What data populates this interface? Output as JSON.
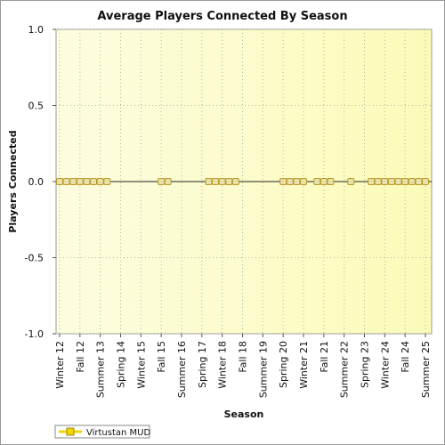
{
  "colors": {
    "plot_bg_left": "#fdfde0",
    "plot_bg_right": "#fbfbb8",
    "marker_fill": "#e8e0a8",
    "marker_stroke": "#b89a28",
    "legend_fill": "#f2d600",
    "legend_stroke": "#9a8a20",
    "zero_line": "#222222",
    "grid": "#b8b8a0"
  },
  "chart_data": {
    "type": "line",
    "title": "Average Players Connected By Season",
    "xlabel": "Season",
    "ylabel": "Players Connected",
    "ylim": [
      -1.0,
      1.0
    ],
    "yticks": [
      1.0,
      0.5,
      0.0,
      -0.5,
      -1.0
    ],
    "ytick_labels": [
      "1.0",
      "0.5",
      "0.0",
      "-0.5",
      "-1.0"
    ],
    "grid": true,
    "legend_position": "bottom-left",
    "categories": [
      "Winter 12",
      "Spring 12",
      "Summer 12",
      "Fall 12",
      "Winter 13",
      "Spring 13",
      "Summer 13",
      "Fall 13",
      "Winter 14",
      "Spring 14",
      "Summer 14",
      "Fall 14",
      "Winter 15",
      "Spring 15",
      "Summer 15",
      "Fall 15",
      "Winter 16",
      "Spring 16",
      "Summer 16",
      "Fall 16",
      "Winter 17",
      "Spring 17",
      "Summer 17",
      "Fall 17",
      "Winter 18",
      "Spring 18",
      "Summer 18",
      "Fall 18",
      "Winter 19",
      "Spring 19",
      "Summer 19",
      "Fall 19",
      "Winter 20",
      "Spring 20",
      "Summer 20",
      "Fall 20",
      "Winter 21",
      "Spring 21",
      "Summer 21",
      "Fall 21",
      "Winter 22",
      "Spring 22",
      "Summer 22",
      "Fall 22",
      "Winter 23",
      "Spring 23",
      "Summer 23",
      "Fall 23",
      "Winter 24",
      "Spring 24",
      "Summer 24",
      "Fall 24",
      "Winter 25",
      "Spring 25",
      "Summer 25"
    ],
    "shown_tick_labels": [
      "Winter 12",
      "Fall 12",
      "Summer 13",
      "Spring 14",
      "Winter 15",
      "Fall 15",
      "Summer 16",
      "Spring 17",
      "Winter 18",
      "Fall 18",
      "Summer 19",
      "Spring 20",
      "Winter 21",
      "Fall 21",
      "Summer 22",
      "Spring 23",
      "Winter 24",
      "Fall 24",
      "Summer 25"
    ],
    "series": [
      {
        "name": "Virtustan MUD",
        "values": [
          0,
          0,
          0,
          0,
          0,
          0,
          0,
          0,
          null,
          null,
          null,
          null,
          null,
          null,
          null,
          0,
          0,
          null,
          null,
          null,
          null,
          null,
          0,
          0,
          0,
          0,
          0,
          null,
          null,
          null,
          null,
          null,
          null,
          0,
          0,
          0,
          0,
          null,
          0,
          0,
          0,
          null,
          null,
          0,
          null,
          null,
          0,
          0,
          0,
          0,
          0,
          0,
          0,
          0,
          0
        ]
      }
    ]
  }
}
